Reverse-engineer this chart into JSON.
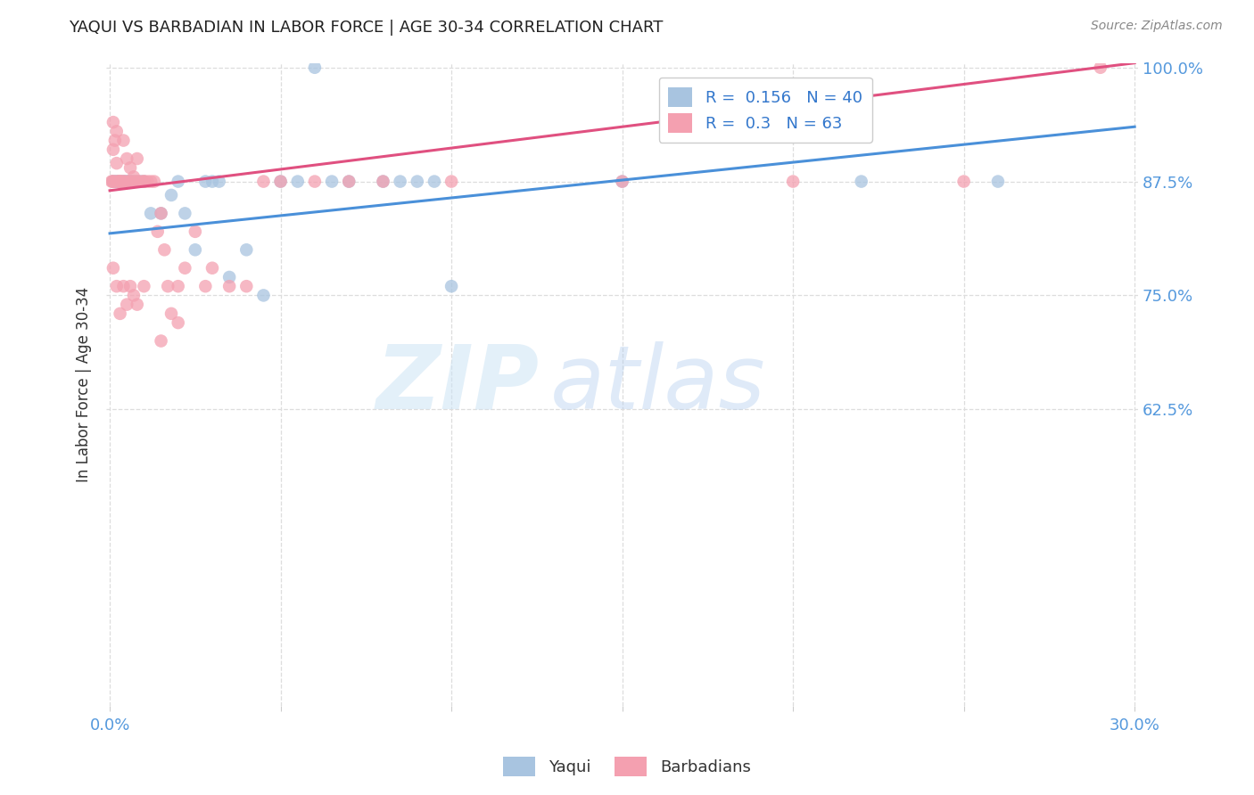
{
  "title": "YAQUI VS BARBADIAN IN LABOR FORCE | AGE 30-34 CORRELATION CHART",
  "source": "Source: ZipAtlas.com",
  "ylabel_label": "In Labor Force | Age 30-34",
  "x_min": 0.0,
  "x_max": 0.3,
  "y_min": 0.3,
  "y_max": 1.005,
  "x_ticks": [
    0.0,
    0.05,
    0.1,
    0.15,
    0.2,
    0.25,
    0.3
  ],
  "x_tick_labels": [
    "0.0%",
    "",
    "",
    "",
    "",
    "",
    "30.0%"
  ],
  "y_ticks": [
    0.625,
    0.75,
    0.875,
    1.0
  ],
  "y_tick_labels": [
    "62.5%",
    "75.0%",
    "87.5%",
    "100.0%"
  ],
  "yaqui_color": "#a8c4e0",
  "barbadian_color": "#f4a0b0",
  "yaqui_line_color": "#4a90d9",
  "barbadian_line_color": "#e05080",
  "R_yaqui": 0.156,
  "N_yaqui": 40,
  "R_barbadian": 0.3,
  "N_barbadian": 63,
  "legend_label_yaqui": "Yaqui",
  "legend_label_barbadian": "Barbadians",
  "background_color": "#ffffff",
  "grid_color": "#dddddd",
  "yaqui_line_x0": 0.0,
  "yaqui_line_y0": 0.818,
  "yaqui_line_x1": 0.3,
  "yaqui_line_y1": 0.935,
  "barb_line_x0": 0.0,
  "barb_line_y0": 0.865,
  "barb_line_x1": 0.3,
  "barb_line_y1": 1.005,
  "yaqui_x": [
    0.001,
    0.001,
    0.002,
    0.002,
    0.003,
    0.004,
    0.004,
    0.005,
    0.005,
    0.006,
    0.006,
    0.007,
    0.008,
    0.009,
    0.01,
    0.012,
    0.015,
    0.018,
    0.02,
    0.022,
    0.025,
    0.028,
    0.03,
    0.032,
    0.035,
    0.04,
    0.045,
    0.05,
    0.055,
    0.06,
    0.065,
    0.07,
    0.08,
    0.085,
    0.09,
    0.095,
    0.1,
    0.15,
    0.22,
    0.26
  ],
  "yaqui_y": [
    0.875,
    0.875,
    0.875,
    0.875,
    0.875,
    0.875,
    0.875,
    0.875,
    0.875,
    0.875,
    0.875,
    0.875,
    0.875,
    0.875,
    0.875,
    0.84,
    0.84,
    0.86,
    0.875,
    0.84,
    0.8,
    0.875,
    0.875,
    0.875,
    0.77,
    0.8,
    0.75,
    0.875,
    0.875,
    1.0,
    0.875,
    0.875,
    0.875,
    0.875,
    0.875,
    0.875,
    0.76,
    0.875,
    0.875,
    0.875
  ],
  "barb_x": [
    0.0005,
    0.0008,
    0.001,
    0.001,
    0.0012,
    0.0015,
    0.002,
    0.002,
    0.002,
    0.0025,
    0.003,
    0.003,
    0.003,
    0.004,
    0.004,
    0.004,
    0.005,
    0.005,
    0.006,
    0.006,
    0.007,
    0.007,
    0.008,
    0.008,
    0.009,
    0.01,
    0.01,
    0.011,
    0.012,
    0.013,
    0.014,
    0.015,
    0.016,
    0.017,
    0.018,
    0.02,
    0.022,
    0.025,
    0.028,
    0.03,
    0.035,
    0.04,
    0.045,
    0.05,
    0.06,
    0.07,
    0.08,
    0.1,
    0.15,
    0.2,
    0.25,
    0.29,
    0.001,
    0.002,
    0.003,
    0.004,
    0.005,
    0.006,
    0.007,
    0.008,
    0.01,
    0.015,
    0.02
  ],
  "barb_y": [
    0.875,
    0.875,
    0.94,
    0.91,
    0.875,
    0.92,
    0.895,
    0.93,
    0.875,
    0.875,
    0.875,
    0.875,
    0.875,
    0.92,
    0.875,
    0.875,
    0.875,
    0.9,
    0.89,
    0.875,
    0.88,
    0.875,
    0.875,
    0.9,
    0.875,
    0.875,
    0.875,
    0.875,
    0.875,
    0.875,
    0.82,
    0.84,
    0.8,
    0.76,
    0.73,
    0.76,
    0.78,
    0.82,
    0.76,
    0.78,
    0.76,
    0.76,
    0.875,
    0.875,
    0.875,
    0.875,
    0.875,
    0.875,
    0.875,
    0.875,
    0.875,
    1.0,
    0.78,
    0.76,
    0.73,
    0.76,
    0.74,
    0.76,
    0.75,
    0.74,
    0.76,
    0.7,
    0.72
  ]
}
